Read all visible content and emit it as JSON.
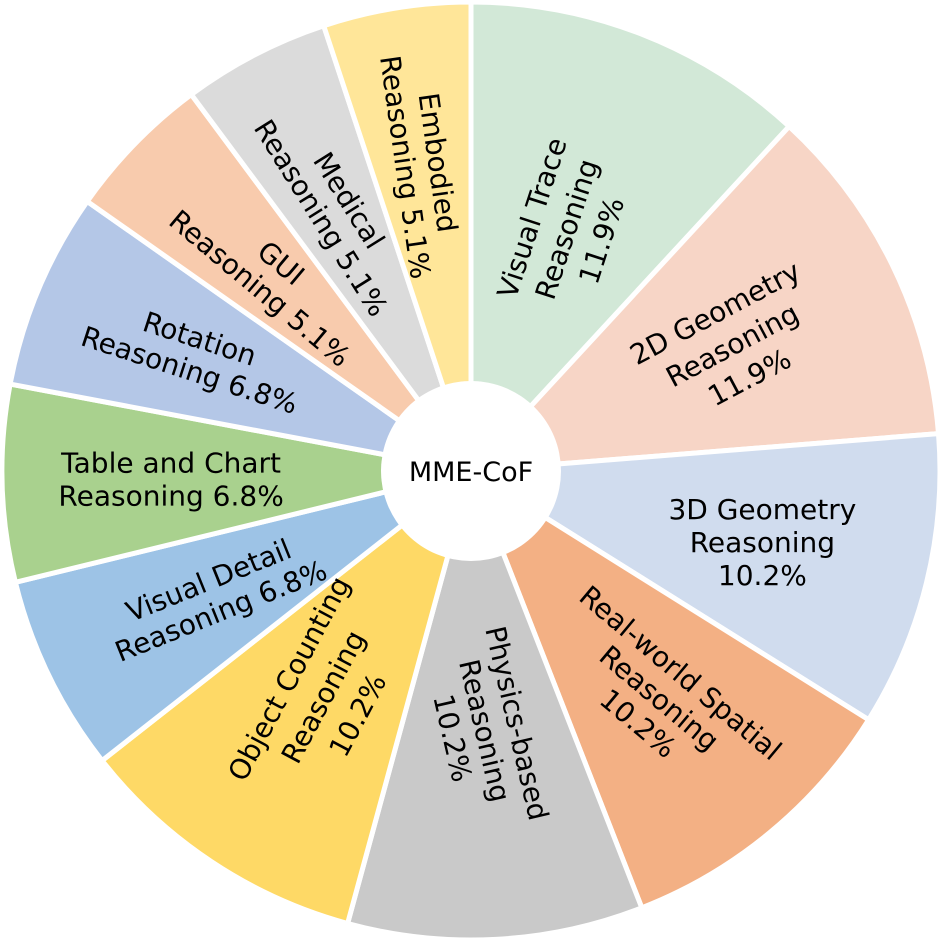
{
  "chart_data": {
    "type": "pie",
    "donut": true,
    "center_label": "MME-CoF",
    "start_angle_deg": 0,
    "direction": "clockwise",
    "slices": [
      {
        "lines": [
          "Visual Trace",
          "Reasoning",
          "11.9%"
        ],
        "value": 11.9,
        "color": "#d2e8d7"
      },
      {
        "lines": [
          "2D Geometry",
          "Reasoning",
          "11.9%"
        ],
        "value": 11.9,
        "color": "#f7d5c6"
      },
      {
        "lines": [
          "3D Geometry",
          "Reasoning",
          "10.2%"
        ],
        "value": 10.2,
        "color": "#d0dcee"
      },
      {
        "lines": [
          "Real-world Spatial",
          "Reasoning",
          "10.2%"
        ],
        "value": 10.2,
        "color": "#f3b084"
      },
      {
        "lines": [
          "Physics-based",
          "Reasoning",
          "10.2%"
        ],
        "value": 10.2,
        "color": "#c9c9c9"
      },
      {
        "lines": [
          "Object Counting",
          "Reasoning",
          "10.2%"
        ],
        "value": 10.2,
        "color": "#fed966"
      },
      {
        "lines": [
          "Visual Detail",
          "Reasoning 6.8%"
        ],
        "value": 6.8,
        "color": "#9dc3e6"
      },
      {
        "lines": [
          "Table and Chart",
          "Reasoning 6.8%"
        ],
        "value": 6.8,
        "color": "#a9d18e"
      },
      {
        "lines": [
          "Rotation",
          "Reasoning 6.8%"
        ],
        "value": 6.8,
        "color": "#b4c7e7"
      },
      {
        "lines": [
          "GUI",
          "Reasoning 5.1%"
        ],
        "value": 5.1,
        "color": "#f8cbad"
      },
      {
        "lines": [
          "Medical",
          "Reasoning 5.1%"
        ],
        "value": 5.1,
        "color": "#dbdbdb"
      },
      {
        "lines": [
          "Embodied",
          "Reasoning 5.1%"
        ],
        "value": 5.1,
        "color": "#ffe699"
      }
    ]
  }
}
